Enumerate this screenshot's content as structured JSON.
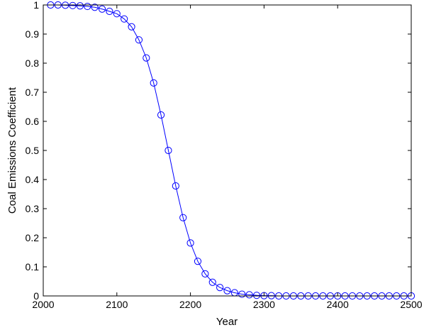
{
  "chart_data": {
    "type": "line",
    "xlabel": "Year",
    "ylabel": "Coal Emissions Coefficient",
    "xlim": [
      2000,
      2500
    ],
    "ylim": [
      0,
      1
    ],
    "grid": false,
    "x_ticks": [
      2000,
      2100,
      2200,
      2300,
      2400,
      2500
    ],
    "x_tick_labels": [
      "2000",
      "2100",
      "2200",
      "2300",
      "2400",
      "2500"
    ],
    "y_ticks": [
      0,
      0.1,
      0.2,
      0.3,
      0.4,
      0.5,
      0.6,
      0.7,
      0.8,
      0.9,
      1
    ],
    "y_tick_labels": [
      "0",
      "0.1",
      "0.2",
      "0.3",
      "0.4",
      "0.5",
      "0.6",
      "0.7",
      "0.8",
      "0.9",
      "1"
    ],
    "colors": {
      "series": "#0000ff",
      "axes": "#000000"
    },
    "marker": "circle-open",
    "series": [
      {
        "x": [
          2010,
          2020,
          2030,
          2040,
          2050,
          2060,
          2070,
          2080,
          2090,
          2100,
          2110,
          2120,
          2130,
          2140,
          2150,
          2160,
          2170,
          2180,
          2190,
          2200,
          2210,
          2220,
          2230,
          2240,
          2250,
          2260,
          2270,
          2280,
          2290,
          2300,
          2310,
          2320,
          2330,
          2340,
          2350,
          2360,
          2370,
          2380,
          2390,
          2400,
          2410,
          2420,
          2430,
          2440,
          2450,
          2460,
          2470,
          2480,
          2490,
          2500
        ],
        "values": [
          1.0,
          1.0,
          0.999,
          0.998,
          0.997,
          0.995,
          0.992,
          0.986,
          0.978,
          0.97,
          0.952,
          0.925,
          0.88,
          0.818,
          0.732,
          0.622,
          0.5,
          0.378,
          0.269,
          0.182,
          0.119,
          0.076,
          0.047,
          0.029,
          0.018,
          0.011,
          0.006,
          0.004,
          0.002,
          0.001,
          0.001,
          0.0,
          0.0,
          0.0,
          0.0,
          0.0,
          0.0,
          0.0,
          0.0,
          0.0,
          0.0,
          0.0,
          0.0,
          0.0,
          0.0,
          0.0,
          0.0,
          0.0,
          0.0,
          0.0
        ]
      }
    ]
  }
}
